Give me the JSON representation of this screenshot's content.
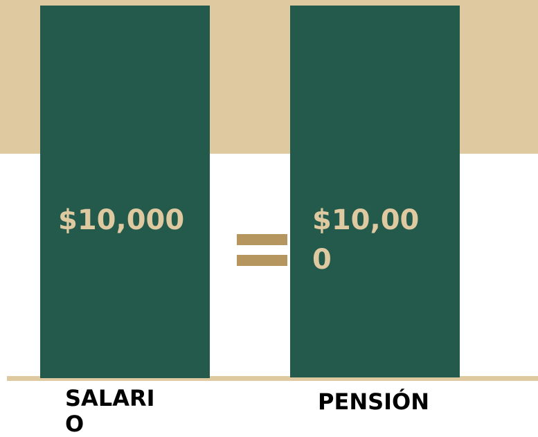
{
  "salary": {
    "amount": "$10,000",
    "label": "SALARIO"
  },
  "pension": {
    "amount": "$10,000",
    "label": "PENSIÓN"
  }
}
